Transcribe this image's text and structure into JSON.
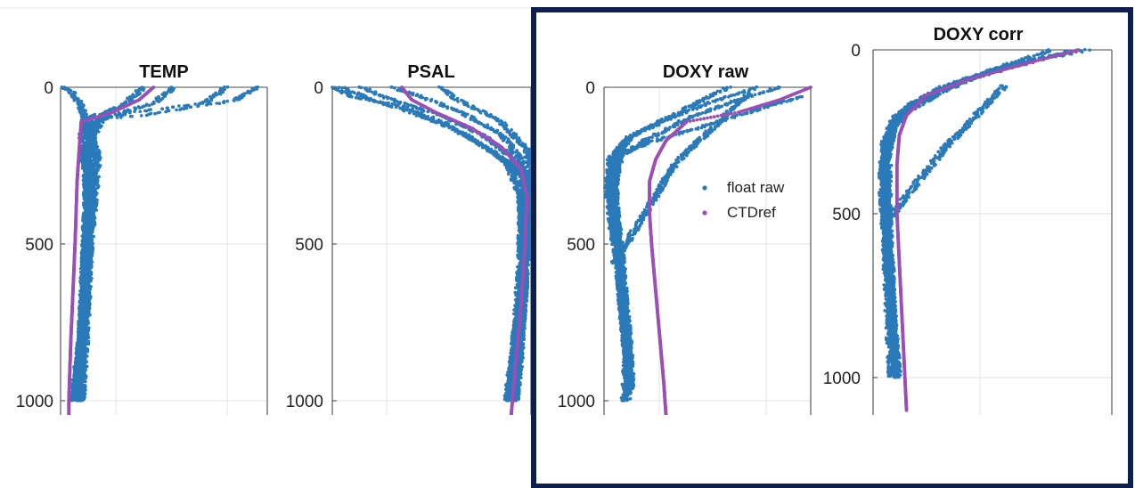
{
  "colors": {
    "float": "#2a7ab9",
    "ref": "#9b4fb5",
    "highlight_frame": "#0d1f4f",
    "grid": "#e3e3e3"
  },
  "legend": {
    "items": [
      {
        "label": "float raw",
        "color": "#2a7ab9"
      },
      {
        "label": "CTDref",
        "color": "#9b4fb5"
      }
    ],
    "placement": "right, inside DOXY raw panel"
  },
  "chart_data": [
    {
      "type": "scatter",
      "title": "TEMP",
      "y_reversed": true,
      "ylim": [
        0,
        1050
      ],
      "yticks": [
        0,
        500,
        1000
      ],
      "xlim": [
        0,
        1
      ],
      "grid": true,
      "series": [
        {
          "depth_profile": [
            [
              0.02,
              0
            ],
            [
              0.06,
              20
            ],
            [
              0.1,
              60
            ],
            [
              0.12,
              100
            ],
            [
              0.15,
              160
            ],
            [
              0.18,
              220
            ],
            [
              0.17,
              300
            ],
            [
              0.14,
              500
            ],
            [
              0.11,
              800
            ],
            [
              0.08,
              1000
            ]
          ],
          "y": [
            0,
            20,
            60,
            100,
            160,
            220,
            300,
            500,
            800,
            1000
          ]
        },
        {
          "depth_profile": [
            [
              0.55,
              0
            ],
            [
              0.45,
              50
            ],
            [
              0.25,
              90
            ],
            [
              0.14,
              120
            ],
            [
              0.13,
              200
            ],
            [
              0.13,
              300
            ],
            [
              0.12,
              500
            ],
            [
              0.1,
              800
            ],
            [
              0.06,
              1000
            ]
          ]
        },
        {
          "depth_profile": [
            [
              0.8,
              0
            ],
            [
              0.7,
              50
            ],
            [
              0.35,
              80
            ],
            [
              0.15,
              110
            ],
            [
              0.13,
              200
            ],
            [
              0.14,
              300
            ],
            [
              0.13,
              500
            ],
            [
              0.11,
              800
            ],
            [
              0.09,
              1000
            ]
          ]
        },
        {
          "depth_profile": [
            [
              0.95,
              0
            ],
            [
              0.85,
              40
            ],
            [
              0.4,
              90
            ],
            [
              0.2,
              100
            ],
            [
              0.14,
              180
            ],
            [
              0.15,
              300
            ],
            [
              0.14,
              500
            ],
            [
              0.12,
              800
            ],
            [
              0.1,
              1000
            ]
          ]
        },
        {
          "depth_profile": [
            [
              0.4,
              0
            ],
            [
              0.3,
              60
            ],
            [
              0.12,
              100
            ],
            [
              0.1,
              150
            ],
            [
              0.12,
              250
            ],
            [
              0.13,
              350
            ],
            [
              0.12,
              500
            ],
            [
              0.1,
              800
            ],
            [
              0.07,
              1000
            ]
          ]
        }
      ],
      "reference": [
        [
          0.45,
          0
        ],
        [
          0.38,
          40
        ],
        [
          0.25,
          80
        ],
        [
          0.1,
          110
        ],
        [
          0.09,
          200
        ],
        [
          0.08,
          300
        ],
        [
          0.07,
          500
        ],
        [
          0.05,
          800
        ],
        [
          0.04,
          1000
        ],
        [
          0.04,
          1050
        ]
      ]
    },
    {
      "type": "scatter",
      "title": "PSAL",
      "y_reversed": true,
      "ylim": [
        0,
        1050
      ],
      "yticks": [
        0,
        500,
        1000
      ],
      "xlim": [
        0,
        1
      ],
      "grid": true,
      "series": [
        {
          "depth_profile": [
            [
              0.05,
              0
            ],
            [
              0.2,
              40
            ],
            [
              0.4,
              80
            ],
            [
              0.6,
              130
            ],
            [
              0.8,
              200
            ],
            [
              0.95,
              280
            ],
            [
              0.97,
              400
            ],
            [
              0.96,
              600
            ],
            [
              0.92,
              800
            ],
            [
              0.88,
              1000
            ]
          ]
        },
        {
          "depth_profile": [
            [
              0.15,
              0
            ],
            [
              0.3,
              40
            ],
            [
              0.55,
              90
            ],
            [
              0.75,
              150
            ],
            [
              0.9,
              220
            ],
            [
              0.98,
              300
            ],
            [
              0.97,
              450
            ],
            [
              0.95,
              650
            ],
            [
              0.92,
              850
            ],
            [
              0.9,
              1000
            ]
          ]
        },
        {
          "depth_profile": [
            [
              0.3,
              0
            ],
            [
              0.45,
              30
            ],
            [
              0.65,
              80
            ],
            [
              0.85,
              150
            ],
            [
              0.95,
              230
            ],
            [
              0.99,
              320
            ],
            [
              0.98,
              500
            ],
            [
              0.96,
              700
            ],
            [
              0.93,
              900
            ],
            [
              0.91,
              1000
            ]
          ]
        },
        {
          "depth_profile": [
            [
              0.55,
              0
            ],
            [
              0.6,
              30
            ],
            [
              0.7,
              60
            ],
            [
              0.85,
              110
            ],
            [
              0.98,
              200
            ],
            [
              1.0,
              300
            ],
            [
              0.98,
              500
            ],
            [
              0.96,
              700
            ],
            [
              0.94,
              900
            ],
            [
              0.92,
              1000
            ]
          ]
        },
        {
          "depth_profile": [
            [
              0.0,
              0
            ],
            [
              0.1,
              30
            ],
            [
              0.35,
              60
            ],
            [
              0.55,
              110
            ],
            [
              0.72,
              170
            ],
            [
              0.88,
              240
            ],
            [
              0.95,
              350
            ],
            [
              0.95,
              550
            ],
            [
              0.92,
              800
            ],
            [
              0.89,
              1000
            ]
          ]
        }
      ],
      "reference": [
        [
          0.35,
          0
        ],
        [
          0.4,
          40
        ],
        [
          0.52,
          80
        ],
        [
          0.7,
          130
        ],
        [
          0.85,
          190
        ],
        [
          0.95,
          260
        ],
        [
          0.98,
          350
        ],
        [
          0.97,
          500
        ],
        [
          0.95,
          700
        ],
        [
          0.92,
          900
        ],
        [
          0.9,
          1050
        ]
      ]
    },
    {
      "type": "scatter",
      "title": "DOXY raw",
      "y_reversed": true,
      "ylim": [
        0,
        1050
      ],
      "yticks": [
        0,
        500,
        1000
      ],
      "xlim": [
        0,
        1
      ],
      "grid": true,
      "series_names": [
        "float raw",
        "CTDref"
      ],
      "series": [
        {
          "depth_profile": [
            [
              0.75,
              0
            ],
            [
              0.55,
              40
            ],
            [
              0.35,
              90
            ],
            [
              0.15,
              150
            ],
            [
              0.04,
              220
            ],
            [
              0.03,
              300
            ],
            [
              0.04,
              400
            ],
            [
              0.06,
              500
            ],
            [
              0.08,
              650
            ],
            [
              0.1,
              800
            ],
            [
              0.12,
              950
            ],
            [
              0.11,
              1000
            ]
          ]
        },
        {
          "depth_profile": [
            [
              0.85,
              0
            ],
            [
              0.65,
              40
            ],
            [
              0.4,
              100
            ],
            [
              0.2,
              170
            ],
            [
              0.06,
              230
            ],
            [
              0.05,
              320
            ],
            [
              0.06,
              420
            ],
            [
              0.08,
              520
            ],
            [
              0.1,
              680
            ],
            [
              0.12,
              820
            ],
            [
              0.13,
              960
            ]
          ]
        },
        {
          "depth_profile": [
            [
              0.6,
              0
            ],
            [
              0.45,
              50
            ],
            [
              0.3,
              100
            ],
            [
              0.12,
              160
            ],
            [
              0.03,
              230
            ],
            [
              0.02,
              330
            ],
            [
              0.04,
              450
            ],
            [
              0.07,
              560
            ],
            [
              0.09,
              700
            ],
            [
              0.11,
              850
            ],
            [
              0.1,
              1000
            ]
          ]
        },
        {
          "depth_profile": [
            [
              0.95,
              30
            ],
            [
              0.75,
              70
            ],
            [
              0.5,
              120
            ],
            [
              0.25,
              170
            ],
            [
              0.08,
              210
            ],
            [
              0.05,
              300
            ],
            [
              0.06,
              450
            ],
            [
              0.08,
              600
            ],
            [
              0.1,
              750
            ],
            [
              0.12,
              900
            ],
            [
              0.12,
              980
            ]
          ]
        },
        {
          "depth_profile": [
            [
              0.7,
              20
            ],
            [
              0.35,
              240
            ],
            [
              0.05,
              560
            ]
          ]
        }
      ],
      "reference": [
        [
          1.0,
          0
        ],
        [
          0.85,
          40
        ],
        [
          0.65,
          80
        ],
        [
          0.4,
          110
        ],
        [
          0.3,
          170
        ],
        [
          0.25,
          230
        ],
        [
          0.22,
          300
        ],
        [
          0.22,
          400
        ],
        [
          0.23,
          500
        ],
        [
          0.25,
          650
        ],
        [
          0.27,
          800
        ],
        [
          0.29,
          950
        ],
        [
          0.3,
          1050
        ]
      ]
    },
    {
      "type": "scatter",
      "title": "DOXY corr",
      "y_reversed": true,
      "ylim": [
        0,
        1110
      ],
      "yticks": [
        0,
        500,
        1000
      ],
      "xlim": [
        0,
        1
      ],
      "grid": true,
      "series": [
        {
          "depth_profile": [
            [
              0.9,
              0
            ],
            [
              0.7,
              30
            ],
            [
              0.45,
              80
            ],
            [
              0.25,
              130
            ],
            [
              0.1,
              200
            ],
            [
              0.06,
              300
            ],
            [
              0.05,
              400
            ],
            [
              0.06,
              500
            ],
            [
              0.07,
              650
            ],
            [
              0.08,
              800
            ],
            [
              0.09,
              950
            ],
            [
              0.09,
              1000
            ]
          ]
        },
        {
          "depth_profile": [
            [
              0.85,
              0
            ],
            [
              0.6,
              40
            ],
            [
              0.35,
              100
            ],
            [
              0.18,
              160
            ],
            [
              0.08,
              220
            ],
            [
              0.05,
              320
            ],
            [
              0.05,
              450
            ],
            [
              0.06,
              600
            ],
            [
              0.07,
              750
            ],
            [
              0.09,
              900
            ],
            [
              0.1,
              1000
            ]
          ]
        },
        {
          "depth_profile": [
            [
              0.8,
              10
            ],
            [
              0.55,
              50
            ],
            [
              0.3,
              110
            ],
            [
              0.15,
              170
            ],
            [
              0.07,
              250
            ],
            [
              0.06,
              350
            ],
            [
              0.06,
              500
            ],
            [
              0.07,
              650
            ],
            [
              0.08,
              820
            ],
            [
              0.09,
              960
            ]
          ]
        },
        {
          "depth_profile": [
            [
              0.75,
              0
            ],
            [
              0.5,
              60
            ],
            [
              0.28,
              130
            ],
            [
              0.12,
              200
            ],
            [
              0.05,
              280
            ],
            [
              0.04,
              400
            ],
            [
              0.05,
              550
            ],
            [
              0.06,
              700
            ],
            [
              0.07,
              850
            ],
            [
              0.08,
              1000
            ]
          ]
        },
        {
          "depth_profile": [
            [
              0.55,
              110
            ],
            [
              0.3,
              300
            ],
            [
              0.06,
              520
            ]
          ]
        }
      ],
      "reference": [
        [
          0.86,
          0
        ],
        [
          0.65,
          40
        ],
        [
          0.4,
          90
        ],
        [
          0.22,
          140
        ],
        [
          0.14,
          200
        ],
        [
          0.11,
          260
        ],
        [
          0.1,
          350
        ],
        [
          0.1,
          500
        ],
        [
          0.11,
          650
        ],
        [
          0.12,
          800
        ],
        [
          0.13,
          950
        ],
        [
          0.14,
          1100
        ]
      ]
    }
  ]
}
